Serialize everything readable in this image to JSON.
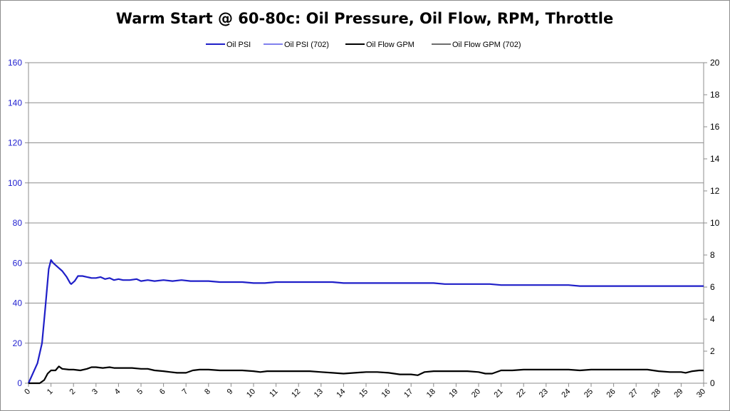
{
  "chart_data": {
    "type": "line",
    "title": "Warm Start @ 60-80c: Oil Pressure, Oil Flow, RPM, Throttle",
    "xlabel": "",
    "ylabel": "",
    "xlim": [
      0,
      30
    ],
    "ylim": [
      0,
      160
    ],
    "y2lim": [
      0,
      20
    ],
    "x_ticks": [
      "0",
      "1",
      "2",
      "3",
      "4",
      "5",
      "6",
      "7",
      "8",
      "9",
      "10",
      "11",
      "12",
      "13",
      "14",
      "15",
      "16",
      "17",
      "18",
      "19",
      "20",
      "21",
      "22",
      "23",
      "24",
      "25",
      "26",
      "27",
      "28",
      "29",
      "30"
    ],
    "y_ticks": [
      "0",
      "20",
      "40",
      "60",
      "80",
      "100",
      "120",
      "140",
      "160"
    ],
    "y2_ticks": [
      "0",
      "2",
      "4",
      "6",
      "8",
      "10",
      "12",
      "14",
      "16",
      "18",
      "20"
    ],
    "grid": true,
    "legend_position": "top",
    "legend": [
      "Oil PSI",
      "Oil PSI (702)",
      "Oil Flow GPM",
      "Oil Flow GPM (702)"
    ],
    "colors": {
      "oil_psi": "#1f1fc8",
      "oil_psi_702": "#8080ee",
      "oil_flow": "#000000",
      "oil_flow_702": "#6e6e6e",
      "left_axis_text": "#1f1fd0"
    },
    "series": [
      {
        "name": "Oil PSI",
        "axis": "left",
        "x": [
          0,
          0.2,
          0.4,
          0.6,
          0.75,
          0.9,
          1.0,
          1.1,
          1.3,
          1.5,
          1.7,
          1.85,
          1.9,
          2.05,
          2.2,
          2.4,
          2.6,
          2.8,
          3.0,
          3.2,
          3.4,
          3.6,
          3.8,
          4.0,
          4.2,
          4.5,
          4.8,
          5.0,
          5.3,
          5.6,
          6.0,
          6.4,
          6.8,
          7.2,
          7.6,
          8.0,
          8.5,
          9.0,
          9.5,
          10.0,
          10.5,
          11.0,
          11.5,
          12.0,
          12.5,
          13.0,
          13.5,
          14.0,
          14.5,
          15.0,
          15.5,
          16.0,
          16.5,
          17.0,
          17.5,
          18.0,
          18.5,
          19.0,
          19.5,
          20.0,
          20.5,
          21.0,
          21.5,
          22.0,
          22.5,
          23.0,
          23.5,
          24.0,
          24.5,
          25.0,
          25.5,
          26.0,
          26.5,
          27.0,
          27.5,
          28.0,
          28.5,
          29.0,
          29.5,
          30.0
        ],
        "values": [
          0,
          5,
          10,
          20,
          38,
          57,
          61.5,
          60,
          58,
          56,
          53,
          50,
          49.5,
          51,
          53.5,
          53.5,
          53,
          52.5,
          52.5,
          53,
          52,
          52.5,
          51.5,
          52,
          51.5,
          51.5,
          52,
          51,
          51.5,
          51,
          51.5,
          51,
          51.5,
          51,
          51,
          51,
          50.5,
          50.5,
          50.5,
          50,
          50,
          50.5,
          50.5,
          50.5,
          50.5,
          50.5,
          50.5,
          50,
          50,
          50,
          50,
          50,
          50,
          50,
          50,
          50,
          49.5,
          49.5,
          49.5,
          49.5,
          49.5,
          49,
          49,
          49,
          49,
          49,
          49,
          49,
          48.5,
          48.5,
          48.5,
          48.5,
          48.5,
          48.5,
          48.5,
          48.5,
          48.5,
          48.5,
          48.5,
          48.5
        ]
      },
      {
        "name": "Oil Flow GPM",
        "axis": "right",
        "x": [
          0,
          0.5,
          0.7,
          0.85,
          1.0,
          1.2,
          1.35,
          1.5,
          1.8,
          2.0,
          2.3,
          2.6,
          2.8,
          3.0,
          3.3,
          3.6,
          3.8,
          4.0,
          4.3,
          4.6,
          5.0,
          5.3,
          5.6,
          6.0,
          6.3,
          6.6,
          7.0,
          7.3,
          7.6,
          8.0,
          8.5,
          9.0,
          9.5,
          10.0,
          10.3,
          10.6,
          11.0,
          11.5,
          12.0,
          12.5,
          13.0,
          13.5,
          14.0,
          14.5,
          15.0,
          15.5,
          16.0,
          16.5,
          17.0,
          17.3,
          17.6,
          18.0,
          18.5,
          19.0,
          19.5,
          20.0,
          20.3,
          20.6,
          21.0,
          21.5,
          22.0,
          22.5,
          23.0,
          23.5,
          24.0,
          24.5,
          25.0,
          25.5,
          26.0,
          26.5,
          27.0,
          27.5,
          28.0,
          28.5,
          29.0,
          29.2,
          29.5,
          29.8,
          30.0
        ],
        "values": [
          0,
          0,
          0.2,
          0.6,
          0.8,
          0.8,
          1.05,
          0.9,
          0.85,
          0.85,
          0.8,
          0.9,
          1.0,
          1.0,
          0.95,
          1.0,
          0.95,
          0.95,
          0.95,
          0.95,
          0.9,
          0.9,
          0.8,
          0.75,
          0.7,
          0.65,
          0.65,
          0.8,
          0.85,
          0.85,
          0.8,
          0.8,
          0.8,
          0.75,
          0.7,
          0.75,
          0.75,
          0.75,
          0.75,
          0.75,
          0.7,
          0.65,
          0.6,
          0.65,
          0.7,
          0.7,
          0.65,
          0.55,
          0.55,
          0.5,
          0.7,
          0.75,
          0.75,
          0.75,
          0.75,
          0.7,
          0.6,
          0.6,
          0.8,
          0.8,
          0.85,
          0.85,
          0.85,
          0.85,
          0.85,
          0.8,
          0.85,
          0.85,
          0.85,
          0.85,
          0.85,
          0.85,
          0.75,
          0.7,
          0.7,
          0.65,
          0.75,
          0.8,
          0.8
        ]
      }
    ]
  }
}
